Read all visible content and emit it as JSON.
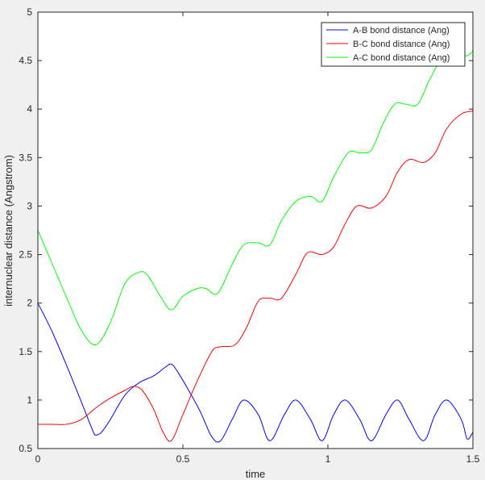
{
  "chart_data": {
    "type": "line",
    "title": "",
    "xlabel": "time",
    "ylabel": "internuclear distance (Angstrom)",
    "xlim": [
      0,
      1.5
    ],
    "ylim": [
      0.5,
      5
    ],
    "xticks": [
      0,
      0.5,
      1,
      1.5
    ],
    "xtick_labels": [
      "0",
      "0.5",
      "1",
      "1.5"
    ],
    "yticks": [
      0.5,
      1,
      1.5,
      2,
      2.5,
      3,
      3.5,
      4,
      4.5,
      5
    ],
    "ytick_labels": [
      "0.5",
      "1",
      "1.5",
      "2",
      "2.5",
      "3",
      "3.5",
      "4",
      "4.5",
      "5"
    ],
    "grid": false,
    "legend_position": "top-right",
    "series": [
      {
        "name": "A-B bond distance (Ang)",
        "color": "#0000ff",
        "x": [
          0,
          0.05,
          0.1,
          0.15,
          0.19,
          0.2,
          0.22,
          0.25,
          0.3,
          0.35,
          0.4,
          0.44,
          0.46,
          0.48,
          0.52,
          0.56,
          0.6,
          0.63,
          0.67,
          0.71,
          0.76,
          0.8,
          0.85,
          0.89,
          0.94,
          0.98,
          1.02,
          1.06,
          1.11,
          1.15,
          1.2,
          1.24,
          1.28,
          1.33,
          1.37,
          1.41,
          1.46,
          1.48,
          1.5
        ],
        "y": [
          2.0,
          1.7,
          1.35,
          0.98,
          0.68,
          0.64,
          0.67,
          0.8,
          1.05,
          1.18,
          1.25,
          1.34,
          1.37,
          1.3,
          1.1,
          0.88,
          0.62,
          0.58,
          0.8,
          1.0,
          0.85,
          0.58,
          0.85,
          1.0,
          0.8,
          0.58,
          0.85,
          1.0,
          0.8,
          0.58,
          0.85,
          1.0,
          0.8,
          0.58,
          0.85,
          1.0,
          0.8,
          0.6,
          0.67
        ]
      },
      {
        "name": "B-C bond distance (Ang)",
        "color": "#ff0000",
        "x": [
          0,
          0.05,
          0.1,
          0.15,
          0.2,
          0.25,
          0.3,
          0.33,
          0.36,
          0.4,
          0.43,
          0.46,
          0.5,
          0.55,
          0.6,
          0.63,
          0.68,
          0.72,
          0.76,
          0.8,
          0.84,
          0.89,
          0.93,
          0.98,
          1.02,
          1.06,
          1.1,
          1.15,
          1.2,
          1.24,
          1.28,
          1.33,
          1.37,
          1.41,
          1.46,
          1.5
        ],
        "y": [
          0.75,
          0.75,
          0.75,
          0.8,
          0.92,
          1.02,
          1.1,
          1.14,
          1.1,
          0.9,
          0.68,
          0.58,
          0.85,
          1.2,
          1.5,
          1.55,
          1.57,
          1.75,
          2.02,
          2.05,
          2.05,
          2.3,
          2.52,
          2.5,
          2.58,
          2.82,
          3.0,
          2.98,
          3.1,
          3.35,
          3.48,
          3.45,
          3.55,
          3.8,
          3.95,
          3.98
        ]
      },
      {
        "name": "A-C bond distance (Ang)",
        "color": "#00ff00",
        "x": [
          0,
          0.05,
          0.1,
          0.15,
          0.2,
          0.25,
          0.3,
          0.35,
          0.38,
          0.42,
          0.46,
          0.5,
          0.55,
          0.58,
          0.62,
          0.67,
          0.71,
          0.76,
          0.8,
          0.84,
          0.89,
          0.94,
          0.98,
          1.02,
          1.07,
          1.11,
          1.15,
          1.19,
          1.23,
          1.27,
          1.31,
          1.35,
          1.39,
          1.44,
          1.48,
          1.5
        ],
        "y": [
          2.75,
          2.4,
          2.05,
          1.72,
          1.57,
          1.8,
          2.2,
          2.32,
          2.28,
          2.08,
          1.93,
          2.07,
          2.15,
          2.15,
          2.1,
          2.4,
          2.6,
          2.62,
          2.6,
          2.85,
          3.05,
          3.1,
          3.05,
          3.3,
          3.55,
          3.55,
          3.58,
          3.85,
          4.05,
          4.05,
          4.05,
          4.3,
          4.5,
          4.55,
          4.55,
          4.6
        ]
      }
    ]
  }
}
